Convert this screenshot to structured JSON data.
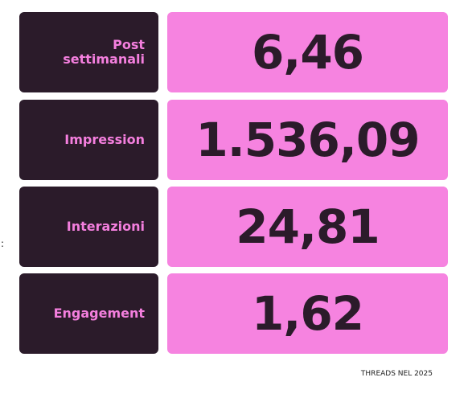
{
  "rows": [
    {
      "label": [
        "Post",
        "settimanali"
      ],
      "value": "6,46"
    },
    {
      "label": [
        "Impression"
      ],
      "value": "1.536,09"
    },
    {
      "label": [
        "Interazioni"
      ],
      "value": "24,81"
    },
    {
      "label": [
        "Engagement"
      ],
      "value": "1,62"
    }
  ],
  "side_mark": ":",
  "footer": "THREADS NEL 2025"
}
